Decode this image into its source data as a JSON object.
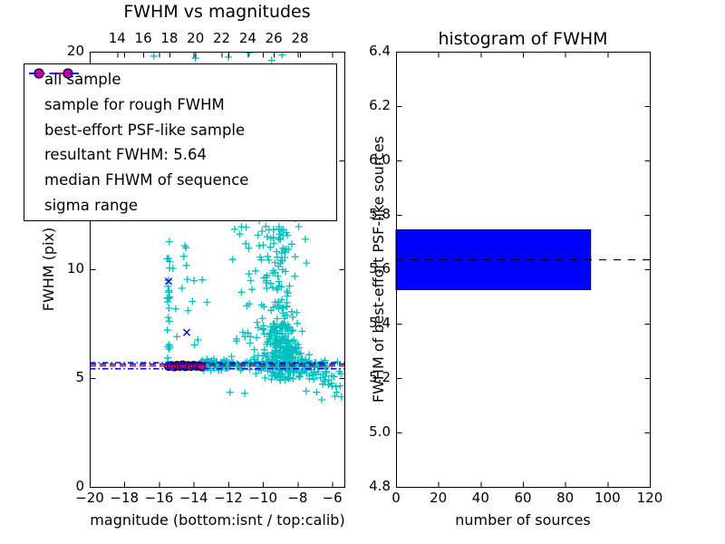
{
  "figure": {
    "background": "#ffffff"
  },
  "colors": {
    "all_sample": "#00bfbf",
    "rough_sample": "#0000ff",
    "psf_sample": "#bf00bf",
    "psf_edge": "#000000",
    "resultant_line": "#0000ff",
    "median_line": "#ff0000",
    "sigma_line": "#0000ff",
    "hist_bar_fill": "#0000ff",
    "hist_bar_edge": "#000000",
    "hist_dash_line": "#000000",
    "frame": "#000000"
  },
  "legend": {
    "entries": [
      {
        "label": "all sample",
        "marker": "plus",
        "color": "#00bfbf"
      },
      {
        "label": "sample for rough FWHM",
        "marker": "x",
        "color": "#0000ff"
      },
      {
        "label": "best-effort PSF-like sample",
        "marker": "circle",
        "color": "#bf00bf",
        "edge": "#000000"
      },
      {
        "label": "resultant FWHM: 5.64",
        "marker": "dashed",
        "color": "#0000ff"
      },
      {
        "label": "median FHWM of sequence",
        "marker": "dashed",
        "color": "#ff0000"
      },
      {
        "label": "sigma range",
        "marker": "dashdot",
        "color": "#0000ff"
      }
    ]
  },
  "chart_data": [
    {
      "type": "scatter",
      "title": "FWHM vs magnitudes",
      "xlabel": "magnitude (bottom:isnt / top:calib)",
      "ylabel": "FWHM (pix)",
      "xlim": [
        -20,
        -5.3
      ],
      "ylim": [
        0,
        20
      ],
      "x_ticks": [
        -20,
        -18,
        -16,
        -14,
        -12,
        -10,
        -8,
        -6
      ],
      "x_tick_labels": [
        "−20",
        "−18",
        "−16",
        "−14",
        "−12",
        "−10",
        "−8",
        "−6"
      ],
      "y_ticks": [
        0,
        5,
        10,
        15,
        20
      ],
      "y_tick_labels": [
        "0",
        "5",
        "10",
        "15",
        "20"
      ],
      "top_axis": {
        "lim": [
          11.9,
          31.4
        ],
        "ticks": [
          14,
          16,
          18,
          20,
          22,
          24,
          26,
          28
        ],
        "tick_labels": [
          "14",
          "16",
          "18",
          "20",
          "22",
          "24",
          "26",
          "28"
        ]
      },
      "grid": false,
      "series": [
        {
          "name": "all sample",
          "marker": "plus",
          "color": "#00bfbf",
          "clusters": [
            {
              "n": 26,
              "x": [
                "u",
                -15.55,
                -15.35
              ],
              "y": [
                "u",
                5.6,
                11.4
              ]
            },
            {
              "n": 16,
              "x": [
                "u",
                -15.3,
                -13.2
              ],
              "y": [
                "u",
                6.3,
                11.4
              ]
            },
            {
              "n": 10,
              "x": [
                "u",
                -16.2,
                -8.0
              ],
              "y": [
                "u",
                12.5,
                19.3
              ]
            },
            {
              "n": 110,
              "x": [
                "u",
                -13.6,
                -9.8
              ],
              "y": [
                "n",
                5.62,
                0.12
              ]
            },
            {
              "n": 200,
              "x": [
                "n",
                -9.0,
                0.45
              ],
              "y": [
                "u",
                4.9,
                7.5
              ]
            },
            {
              "n": 90,
              "x": [
                "n",
                -9.05,
                0.5
              ],
              "y": [
                "u",
                7.5,
                12.0
              ]
            },
            {
              "n": 45,
              "x": [
                "n",
                -9.1,
                0.6
              ],
              "y": [
                "u",
                12.0,
                19.3
              ]
            },
            {
              "n": 40,
              "x": [
                "u",
                -11.8,
                -9.8
              ],
              "y": [
                "u",
                5.8,
                12.5
              ]
            },
            {
              "n": 45,
              "x": [
                "u",
                -9.8,
                -6.3
              ],
              "y": [
                "n",
                5.6,
                0.1
              ]
            },
            {
              "n": 110,
              "type": "fan",
              "x0": -8.6,
              "x1": -5.4,
              "y0": 6.1,
              "y1": 4.5,
              "jitter": 0.35
            }
          ],
          "points": [
            [
              -16.3,
              19.8
            ],
            [
              -13.9,
              19.7
            ],
            [
              -12.0,
              19.75
            ],
            [
              -10.8,
              19.95
            ],
            [
              -9.5,
              19.6
            ],
            [
              -8.9,
              19.85
            ],
            [
              -11.9,
              4.35
            ],
            [
              -11.05,
              4.3
            ],
            [
              -7.5,
              4.4
            ],
            [
              -6.9,
              4.35
            ],
            [
              -6.6,
              4.0
            ],
            [
              -6.2,
              4.9
            ],
            [
              -5.7,
              5.75
            ],
            [
              -5.6,
              5.3
            ],
            [
              -5.5,
              5.2
            ]
          ]
        },
        {
          "name": "sample for rough FWHM",
          "marker": "x",
          "color": "#0000ff",
          "points": [
            [
              -15.45,
              9.45
            ],
            [
              -14.4,
              7.1
            ],
            [
              -14.95,
              5.57
            ]
          ]
        },
        {
          "name": "best-effort PSF-like sample",
          "marker": "circle",
          "color": "#bf00bf",
          "edge": "#000000",
          "points": [
            [
              -15.45,
              5.54
            ],
            [
              -15.28,
              5.57
            ],
            [
              -15.12,
              5.52
            ],
            [
              -14.96,
              5.58
            ],
            [
              -14.8,
              5.54
            ],
            [
              -14.64,
              5.6
            ],
            [
              -14.48,
              5.53
            ],
            [
              -14.32,
              5.57
            ],
            [
              -14.16,
              5.54
            ],
            [
              -14.0,
              5.58
            ],
            [
              -13.84,
              5.55
            ],
            [
              -13.68,
              5.56
            ],
            [
              -13.55,
              5.53
            ]
          ]
        }
      ],
      "lines": [
        {
          "name": "resultant FWHM",
          "value": 5.64,
          "style": "dashed",
          "color": "#0000ff"
        },
        {
          "name": "median FHWM of sequence",
          "value": 5.56,
          "style": "dashed",
          "color": "#ff0000"
        },
        {
          "name": "sigma range",
          "value": [
            5.43,
            5.71
          ],
          "style": "dashdot",
          "color": "#0000ff"
        }
      ]
    },
    {
      "type": "bar",
      "orientation": "horizontal",
      "title": "histogram of FWHM",
      "xlabel": "number of sources",
      "ylabel": "FWHM of best-effort PSF-like sources",
      "xlim": [
        0,
        120
      ],
      "ylim": [
        4.8,
        6.4
      ],
      "x_ticks": [
        0,
        20,
        40,
        60,
        80,
        100,
        120
      ],
      "x_tick_labels": [
        "0",
        "20",
        "40",
        "60",
        "80",
        "100",
        "120"
      ],
      "y_ticks": [
        4.8,
        5.0,
        5.2,
        5.4,
        5.6,
        5.8,
        6.0,
        6.2,
        6.4
      ],
      "y_tick_labels": [
        "4.8",
        "5.0",
        "5.2",
        "5.4",
        "5.6",
        "5.8",
        "6.0",
        "6.2",
        "6.4"
      ],
      "grid": false,
      "bars": [
        {
          "y_from": 5.525,
          "y_to": 5.745,
          "count": 92
        }
      ],
      "marker_line": {
        "value": 5.635,
        "style": "dashed",
        "color": "#000000"
      }
    }
  ]
}
